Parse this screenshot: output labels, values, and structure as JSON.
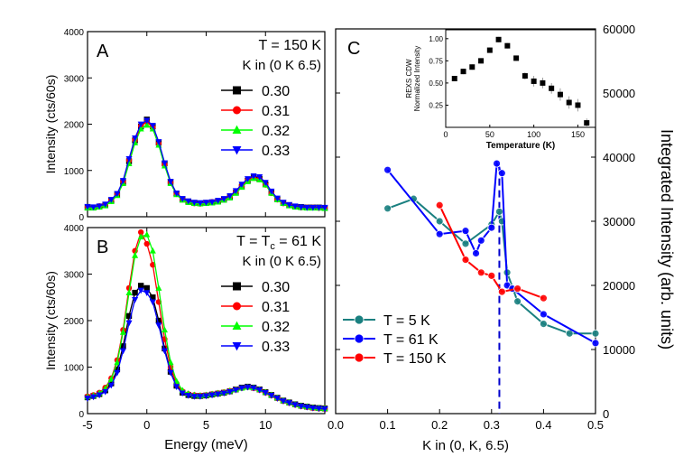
{
  "chart_data": [
    {
      "panel": "A",
      "type": "line",
      "title": "A",
      "annotation": "T = 150 K",
      "legend_title": "K in (0 K 6.5)",
      "xlabel": "",
      "ylabel": "Intensity (cts/60s)",
      "xlim": [
        -5,
        15
      ],
      "ylim": [
        0,
        4000
      ],
      "xticks": [
        -5,
        0,
        5,
        10
      ],
      "yticks": [
        0,
        1000,
        2000,
        3000,
        4000
      ],
      "x": [
        -5,
        -4.5,
        -4,
        -3.5,
        -3,
        -2.5,
        -2,
        -1.5,
        -1,
        -0.5,
        0,
        0.5,
        1,
        1.5,
        2,
        2.5,
        3,
        3.5,
        4,
        4.5,
        5,
        5.5,
        6,
        6.5,
        7,
        7.5,
        8,
        8.5,
        9,
        9.5,
        10,
        10.5,
        11,
        11.5,
        12,
        12.5,
        13,
        13.5,
        14,
        14.5,
        15
      ],
      "series": [
        {
          "name": "0.30",
          "color": "#000000",
          "marker": "square",
          "values": [
            200,
            200,
            220,
            250,
            350,
            480,
            750,
            1200,
            1650,
            1950,
            2100,
            1950,
            1600,
            1150,
            750,
            500,
            380,
            330,
            300,
            290,
            300,
            310,
            330,
            370,
            420,
            520,
            650,
            780,
            850,
            820,
            700,
            520,
            380,
            300,
            250,
            220,
            210,
            200,
            200,
            200,
            190
          ]
        },
        {
          "name": "0.31",
          "color": "#ff0000",
          "marker": "circle",
          "values": [
            210,
            200,
            230,
            260,
            360,
            490,
            760,
            1220,
            1660,
            1960,
            2050,
            1930,
            1580,
            1130,
            740,
            490,
            370,
            320,
            290,
            280,
            300,
            320,
            340,
            380,
            430,
            530,
            660,
            790,
            840,
            810,
            690,
            510,
            370,
            290,
            250,
            220,
            200,
            200,
            200,
            190,
            190
          ]
        },
        {
          "name": "0.32",
          "color": "#00ff00",
          "marker": "triangle-up",
          "values": [
            190,
            190,
            210,
            240,
            330,
            460,
            720,
            1150,
            1600,
            1900,
            1980,
            1900,
            1550,
            1100,
            720,
            480,
            360,
            310,
            290,
            280,
            290,
            300,
            320,
            360,
            410,
            510,
            640,
            760,
            830,
            800,
            690,
            510,
            370,
            290,
            240,
            210,
            200,
            190,
            190,
            190,
            180
          ]
        },
        {
          "name": "0.33",
          "color": "#0000ff",
          "marker": "triangle-down",
          "values": [
            220,
            210,
            230,
            270,
            370,
            500,
            780,
            1250,
            1700,
            2000,
            2080,
            1970,
            1620,
            1160,
            760,
            510,
            390,
            340,
            310,
            300,
            310,
            320,
            350,
            390,
            450,
            560,
            700,
            820,
            880,
            860,
            740,
            550,
            400,
            310,
            260,
            230,
            210,
            200,
            200,
            200,
            200
          ]
        }
      ]
    },
    {
      "panel": "B",
      "type": "line",
      "title": "B",
      "annotation": "T = T",
      "annotation_sub": "c",
      "annotation_tail": " = 61 K",
      "legend_title": "K in (0 K 6.5)",
      "xlabel": "Energy (meV)",
      "ylabel": "Intensity (cts/60s)",
      "xlim": [
        -5,
        15
      ],
      "ylim": [
        0,
        4000
      ],
      "xticks": [
        -5,
        0,
        5,
        10
      ],
      "yticks": [
        0,
        1000,
        2000,
        3000,
        4000
      ],
      "x": [
        -5,
        -4.5,
        -4,
        -3.5,
        -3,
        -2.5,
        -2,
        -1.5,
        -1,
        -0.5,
        0,
        0.5,
        1,
        1.5,
        2,
        2.5,
        3,
        3.5,
        4,
        4.5,
        5,
        5.5,
        6,
        6.5,
        7,
        7.5,
        8,
        8.5,
        9,
        9.5,
        10,
        10.5,
        11,
        11.5,
        12,
        12.5,
        13,
        13.5,
        14,
        14.5,
        15
      ],
      "series": [
        {
          "name": "0.30",
          "color": "#000000",
          "marker": "square",
          "values": [
            350,
            380,
            420,
            500,
            650,
            950,
            1450,
            2100,
            2600,
            2750,
            2700,
            2500,
            2000,
            1400,
            900,
            600,
            450,
            400,
            380,
            380,
            390,
            410,
            430,
            450,
            480,
            520,
            560,
            580,
            560,
            520,
            460,
            400,
            340,
            280,
            240,
            200,
            170,
            150,
            130,
            120,
            110
          ]
        },
        {
          "name": "0.31",
          "color": "#ff0000",
          "marker": "circle",
          "values": [
            370,
            400,
            450,
            560,
            760,
            1150,
            1800,
            2700,
            3500,
            3900,
            3650,
            3200,
            2400,
            1600,
            1000,
            650,
            480,
            420,
            400,
            390,
            400,
            420,
            440,
            460,
            490,
            520,
            550,
            570,
            550,
            510,
            450,
            390,
            330,
            270,
            230,
            190,
            160,
            140,
            120,
            110,
            100
          ]
        },
        {
          "name": "0.32",
          "color": "#00ff00",
          "marker": "triangle-up",
          "values": [
            360,
            390,
            440,
            540,
            740,
            1100,
            1750,
            2600,
            3400,
            3800,
            3850,
            3500,
            2700,
            1800,
            1100,
            700,
            500,
            430,
            400,
            390,
            400,
            420,
            440,
            460,
            490,
            520,
            550,
            570,
            560,
            520,
            460,
            400,
            340,
            280,
            240,
            200,
            170,
            150,
            130,
            120,
            110
          ]
        },
        {
          "name": "0.33",
          "color": "#0000ff",
          "marker": "triangle-down",
          "values": [
            330,
            360,
            400,
            470,
            610,
            880,
            1350,
            1950,
            2450,
            2650,
            2600,
            2400,
            1900,
            1350,
            880,
            580,
            440,
            390,
            370,
            370,
            380,
            400,
            420,
            440,
            470,
            510,
            550,
            570,
            550,
            510,
            450,
            390,
            330,
            270,
            230,
            190,
            160,
            140,
            120,
            110,
            100
          ]
        }
      ]
    },
    {
      "panel": "C",
      "type": "line",
      "title": "C",
      "xlabel": "K in (0, K, 6.5)",
      "ylabel": "Integrated Intensity (arb. units)",
      "xlim": [
        0.0,
        0.5
      ],
      "ylim": [
        0,
        60000
      ],
      "xticks": [
        0.0,
        0.1,
        0.2,
        0.3,
        0.4,
        0.5
      ],
      "yticks": [
        0,
        10000,
        20000,
        30000,
        40000,
        50000,
        60000
      ],
      "vline": 0.315,
      "series": [
        {
          "name": "T = 5 K",
          "color": "#1a8080",
          "x": [
            0.1,
            0.15,
            0.2,
            0.25,
            0.3,
            0.315,
            0.32,
            0.33,
            0.35,
            0.4,
            0.45,
            0.5
          ],
          "values": [
            32000,
            33500,
            30000,
            26500,
            29500,
            31500,
            30000,
            22000,
            17500,
            14000,
            12500,
            12500
          ]
        },
        {
          "name": "T = 61 K",
          "color": "#0000ff",
          "x": [
            0.1,
            0.2,
            0.25,
            0.27,
            0.28,
            0.3,
            0.31,
            0.32,
            0.33,
            0.34,
            0.4,
            0.5
          ],
          "values": [
            38000,
            28000,
            28500,
            25000,
            27000,
            29000,
            39000,
            37500,
            20000,
            19500,
            15500,
            11000
          ]
        },
        {
          "name": "T = 150 K",
          "color": "#ff0000",
          "x": [
            0.2,
            0.25,
            0.28,
            0.3,
            0.32,
            0.35,
            0.4
          ],
          "values": [
            32500,
            24000,
            22000,
            21500,
            19000,
            19500,
            18000
          ]
        }
      ]
    },
    {
      "panel": "inset",
      "type": "scatter",
      "ylabel_lines": [
        "REXS CDW",
        "Normalized Intensity"
      ],
      "xlabel": "Temperature (K)",
      "xlim": [
        0,
        170
      ],
      "ylim": [
        0.0,
        1.1
      ],
      "xticks": [
        0,
        50,
        100,
        150
      ],
      "yticks": [
        0.25,
        0.5,
        0.75,
        1.0
      ],
      "ytick_labels": [
        "0.25",
        "0.50",
        "0.75",
        "1.00"
      ],
      "x": [
        10,
        20,
        30,
        40,
        50,
        60,
        70,
        80,
        90,
        100,
        110,
        120,
        130,
        140,
        150,
        160
      ],
      "values": [
        0.55,
        0.63,
        0.68,
        0.75,
        0.87,
        0.99,
        0.92,
        0.78,
        0.58,
        0.52,
        0.5,
        0.44,
        0.37,
        0.28,
        0.25,
        0.05
      ],
      "errors": [
        0.03,
        0.03,
        0.03,
        0.03,
        0.03,
        0.03,
        0.03,
        0.03,
        0.04,
        0.06,
        0.06,
        0.06,
        0.07,
        0.07,
        0.07,
        0.05
      ],
      "color": "#000000"
    }
  ]
}
